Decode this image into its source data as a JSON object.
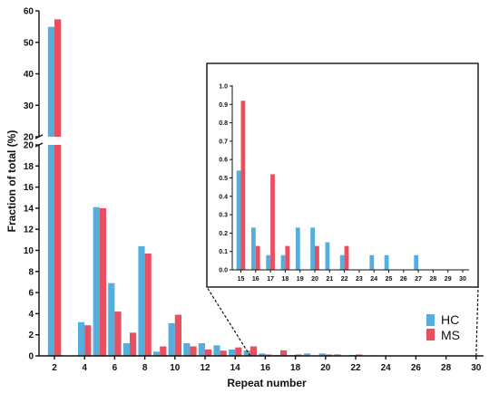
{
  "colors": {
    "HC": "#56AEDC",
    "MS": "#E8505F"
  },
  "legend": {
    "hc_label": "HC",
    "ms_label": "MS",
    "placement": "lower-right"
  },
  "chart_data": [
    {
      "type": "bar",
      "title": "",
      "xlabel": "Repeat number",
      "ylabel": "Fraction of total (%)",
      "x": [
        2,
        4,
        5,
        6,
        7,
        8,
        9,
        10,
        11,
        12,
        13,
        14,
        15,
        16,
        17,
        18,
        19,
        20,
        21,
        22,
        23
      ],
      "series": [
        {
          "name": "HC",
          "values": [
            54.9,
            3.2,
            14.1,
            6.9,
            1.2,
            10.4,
            0.4,
            3.1,
            1.2,
            1.2,
            1.0,
            0.6,
            0.5,
            0.23,
            0.08,
            0.08,
            0.23,
            0.23,
            0.15,
            0.08,
            0
          ]
        },
        {
          "name": "MS",
          "values": [
            57.3,
            2.9,
            14.0,
            4.2,
            2.2,
            9.7,
            0.9,
            3.9,
            0.9,
            0.6,
            0.5,
            0.8,
            0.9,
            0.13,
            0.52,
            0.13,
            0,
            0.13,
            0,
            0.13,
            0.05
          ]
        }
      ],
      "xlim": [
        1,
        31
      ],
      "xticks": [
        2,
        4,
        6,
        8,
        10,
        12,
        14,
        16,
        18,
        20,
        22,
        24,
        26,
        28,
        30
      ],
      "ylim_lower": [
        0,
        20
      ],
      "ylim_upper": [
        20,
        60
      ],
      "yticks_lower": [
        0,
        2,
        4,
        6,
        8,
        10,
        12,
        14,
        16,
        18,
        20
      ],
      "yticks_upper": [
        20,
        30,
        40,
        50,
        60
      ],
      "broken_y_axis": true,
      "grid": false
    },
    {
      "type": "bar",
      "title": "",
      "x": [
        15,
        16,
        17,
        18,
        19,
        20,
        21,
        22,
        23,
        24,
        25,
        26,
        27,
        28,
        29,
        30
      ],
      "series": [
        {
          "name": "HC",
          "values": [
            0.54,
            0.23,
            0.08,
            0.08,
            0.23,
            0.23,
            0.15,
            0.08,
            0,
            0.08,
            0.08,
            0,
            0.08,
            0,
            0,
            0
          ]
        },
        {
          "name": "MS",
          "values": [
            0.92,
            0.13,
            0.52,
            0.13,
            0,
            0.13,
            0,
            0.13,
            0,
            0,
            0,
            0,
            0,
            0,
            0,
            0
          ]
        }
      ],
      "ylim": [
        0,
        1.0
      ],
      "yticks": [
        "0.0",
        "0.1",
        "0.2",
        "0.3",
        "0.4",
        "0.5",
        "0.6",
        "0.7",
        "0.8",
        "0.9",
        "1.0"
      ],
      "grid": false
    }
  ]
}
